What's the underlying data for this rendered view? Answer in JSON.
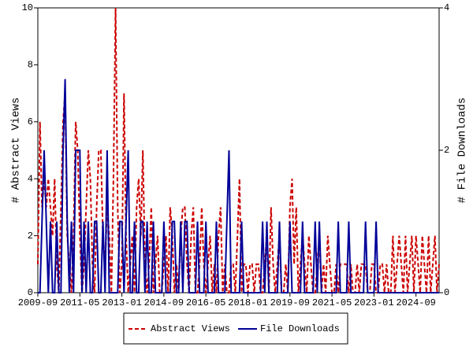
{
  "chart_data": {
    "type": "line",
    "x": [
      "2009-09",
      "2009-10",
      "2009-11",
      "2009-12",
      "2010-01",
      "2010-02",
      "2010-03",
      "2010-04",
      "2010-05",
      "2010-06",
      "2010-07",
      "2010-08",
      "2010-09",
      "2010-10",
      "2010-11",
      "2010-12",
      "2011-01",
      "2011-02",
      "2011-03",
      "2011-04",
      "2011-05",
      "2011-06",
      "2011-07",
      "2011-08",
      "2011-09",
      "2011-10",
      "2011-11",
      "2011-12",
      "2012-01",
      "2012-02",
      "2012-03",
      "2012-04",
      "2012-05",
      "2012-06",
      "2012-07",
      "2012-08",
      "2012-09",
      "2012-10",
      "2012-11",
      "2012-12",
      "2013-01",
      "2013-02",
      "2013-03",
      "2013-04",
      "2013-05",
      "2013-06",
      "2013-07",
      "2013-08",
      "2013-09",
      "2013-10",
      "2013-11",
      "2013-12",
      "2014-01",
      "2014-02",
      "2014-03",
      "2014-04",
      "2014-05",
      "2014-06",
      "2014-07",
      "2014-08",
      "2014-09",
      "2014-10",
      "2014-11",
      "2014-12",
      "2015-01",
      "2015-02",
      "2015-03",
      "2015-04",
      "2015-05",
      "2015-06",
      "2015-07",
      "2015-08",
      "2015-09",
      "2015-10",
      "2015-11",
      "2015-12",
      "2016-01",
      "2016-02",
      "2016-03",
      "2016-04",
      "2016-05",
      "2016-06",
      "2016-07",
      "2016-08",
      "2016-09",
      "2016-10",
      "2016-11",
      "2016-12",
      "2017-01",
      "2017-02",
      "2017-03",
      "2017-04",
      "2017-05",
      "2017-06",
      "2017-07",
      "2017-08",
      "2017-09",
      "2017-10",
      "2017-11",
      "2017-12",
      "2018-01",
      "2018-02",
      "2018-03",
      "2018-04",
      "2018-05",
      "2018-06",
      "2018-07",
      "2018-08",
      "2018-09",
      "2018-10",
      "2018-11",
      "2018-12",
      "2019-01",
      "2019-02",
      "2019-03",
      "2019-04",
      "2019-05",
      "2019-06",
      "2019-07",
      "2019-08",
      "2019-09",
      "2019-10",
      "2019-11",
      "2019-12",
      "2020-01",
      "2020-02",
      "2020-03",
      "2020-04",
      "2020-05",
      "2020-06",
      "2020-07",
      "2020-08",
      "2020-09",
      "2020-10",
      "2020-11",
      "2020-12",
      "2021-01",
      "2021-02",
      "2021-03",
      "2021-04",
      "2021-05",
      "2021-06",
      "2021-07",
      "2021-08",
      "2021-09",
      "2021-10",
      "2021-11",
      "2021-12",
      "2022-01",
      "2022-02",
      "2022-03",
      "2022-04",
      "2022-05",
      "2022-06",
      "2022-07",
      "2022-08",
      "2022-09",
      "2022-10",
      "2022-11",
      "2022-12",
      "2023-01",
      "2023-02",
      "2023-03",
      "2023-04",
      "2023-05",
      "2023-06",
      "2023-07",
      "2023-08",
      "2023-09",
      "2023-10",
      "2023-11",
      "2023-12",
      "2024-01",
      "2024-02",
      "2024-03",
      "2024-04",
      "2024-05",
      "2024-06",
      "2024-07",
      "2024-08",
      "2024-09",
      "2024-10",
      "2024-11",
      "2024-12",
      "2025-01",
      "2025-02",
      "2025-03",
      "2025-04",
      "2025-05",
      "2025-06",
      "2025-07",
      "2025-08"
    ],
    "xticks": [
      "2009-09",
      "2011-05",
      "2013-01",
      "2014-09",
      "2016-05",
      "2018-01",
      "2019-09",
      "2021-05",
      "2023-01",
      "2024-09"
    ],
    "ylabel": "# Abstract Views",
    "y2label": "# File Downloads",
    "ylim": [
      0,
      10
    ],
    "yticks": [
      0,
      2,
      4,
      6,
      8,
      10
    ],
    "y2lim": [
      0,
      4
    ],
    "y2ticks": [
      0,
      2,
      4
    ],
    "legend": "bottom",
    "series": [
      {
        "name": "Abstract Views",
        "color": "#cc0000",
        "dash": true,
        "values": [
          1,
          6,
          3,
          4,
          3,
          4,
          3,
          2,
          4,
          1,
          0,
          3,
          6,
          7,
          2,
          1,
          0,
          2,
          6,
          5,
          2,
          0,
          1,
          3,
          5,
          4,
          1,
          0,
          3,
          5,
          5,
          2,
          1,
          3,
          2,
          0,
          4,
          10,
          3,
          0,
          1,
          7,
          2,
          0,
          1,
          2,
          0,
          3,
          4,
          2,
          5,
          1,
          0,
          1,
          3,
          0,
          1,
          2,
          0,
          0,
          1,
          2,
          0,
          3,
          2,
          0,
          1,
          0,
          2,
          3,
          3,
          1,
          0,
          2,
          3,
          0,
          0,
          1,
          3,
          1,
          0,
          1,
          2,
          0,
          1,
          0,
          2,
          3,
          0,
          1,
          0,
          0,
          1,
          1,
          0,
          2,
          4,
          0,
          1,
          1,
          0,
          1,
          1,
          0,
          1,
          1,
          0,
          0,
          1,
          2,
          0,
          3,
          1,
          0,
          1,
          2,
          0,
          0,
          1,
          0,
          3,
          4,
          1,
          3,
          0,
          1,
          2,
          1,
          0,
          2,
          1,
          0,
          0,
          1,
          2,
          0,
          1,
          0,
          2,
          1,
          0,
          0,
          1,
          0,
          1,
          1,
          1,
          1,
          0,
          1,
          0,
          0,
          1,
          0,
          1,
          1,
          1,
          0,
          0,
          1,
          1,
          0,
          0,
          1,
          1,
          0,
          1,
          0,
          0,
          2,
          0,
          1,
          2,
          1,
          0,
          2,
          0,
          1,
          2,
          0,
          2,
          1,
          0,
          2,
          1,
          0,
          2,
          0,
          1,
          2,
          0,
          1
        ]
      },
      {
        "name": "File Downloads",
        "color": "#000099",
        "axis": "y2",
        "values": [
          0,
          0,
          1,
          2,
          1,
          0,
          1,
          0,
          0,
          1,
          0,
          0,
          2,
          3,
          1,
          0,
          1,
          0,
          2,
          2,
          2,
          0,
          1,
          0,
          1,
          0,
          0,
          1,
          1,
          0,
          0,
          1,
          0,
          2,
          0,
          0,
          0,
          0,
          0,
          1,
          1,
          0,
          1,
          2,
          0,
          0,
          1,
          0,
          0,
          1,
          1,
          0,
          1,
          0,
          0,
          1,
          0,
          0,
          0,
          0,
          1,
          0,
          0,
          0,
          1,
          1,
          0,
          0,
          1,
          0,
          1,
          1,
          0,
          0,
          0,
          0,
          1,
          0,
          0,
          0,
          1,
          0,
          0,
          0,
          0,
          1,
          0,
          0,
          0,
          0,
          1,
          2,
          0,
          0,
          0,
          0,
          0,
          1,
          0,
          0,
          0,
          0,
          0,
          0,
          0,
          0,
          0,
          1,
          0,
          1,
          0,
          0,
          0,
          0,
          0,
          1,
          0,
          0,
          0,
          0,
          1,
          0,
          0,
          0,
          0,
          0,
          1,
          0,
          0,
          0,
          0,
          0,
          1,
          0,
          1,
          0,
          0,
          0,
          0,
          0,
          0,
          0,
          0,
          1,
          0,
          0,
          0,
          0,
          1,
          0,
          0,
          0,
          0,
          0,
          0,
          0,
          1,
          0,
          0,
          0,
          0,
          1,
          0,
          0,
          0,
          0,
          0,
          0,
          0,
          0,
          0,
          0,
          0,
          0,
          0,
          0,
          0,
          0,
          0,
          0,
          0,
          0,
          0,
          0,
          0,
          0,
          0,
          0,
          0,
          0,
          0,
          0
        ]
      }
    ]
  }
}
